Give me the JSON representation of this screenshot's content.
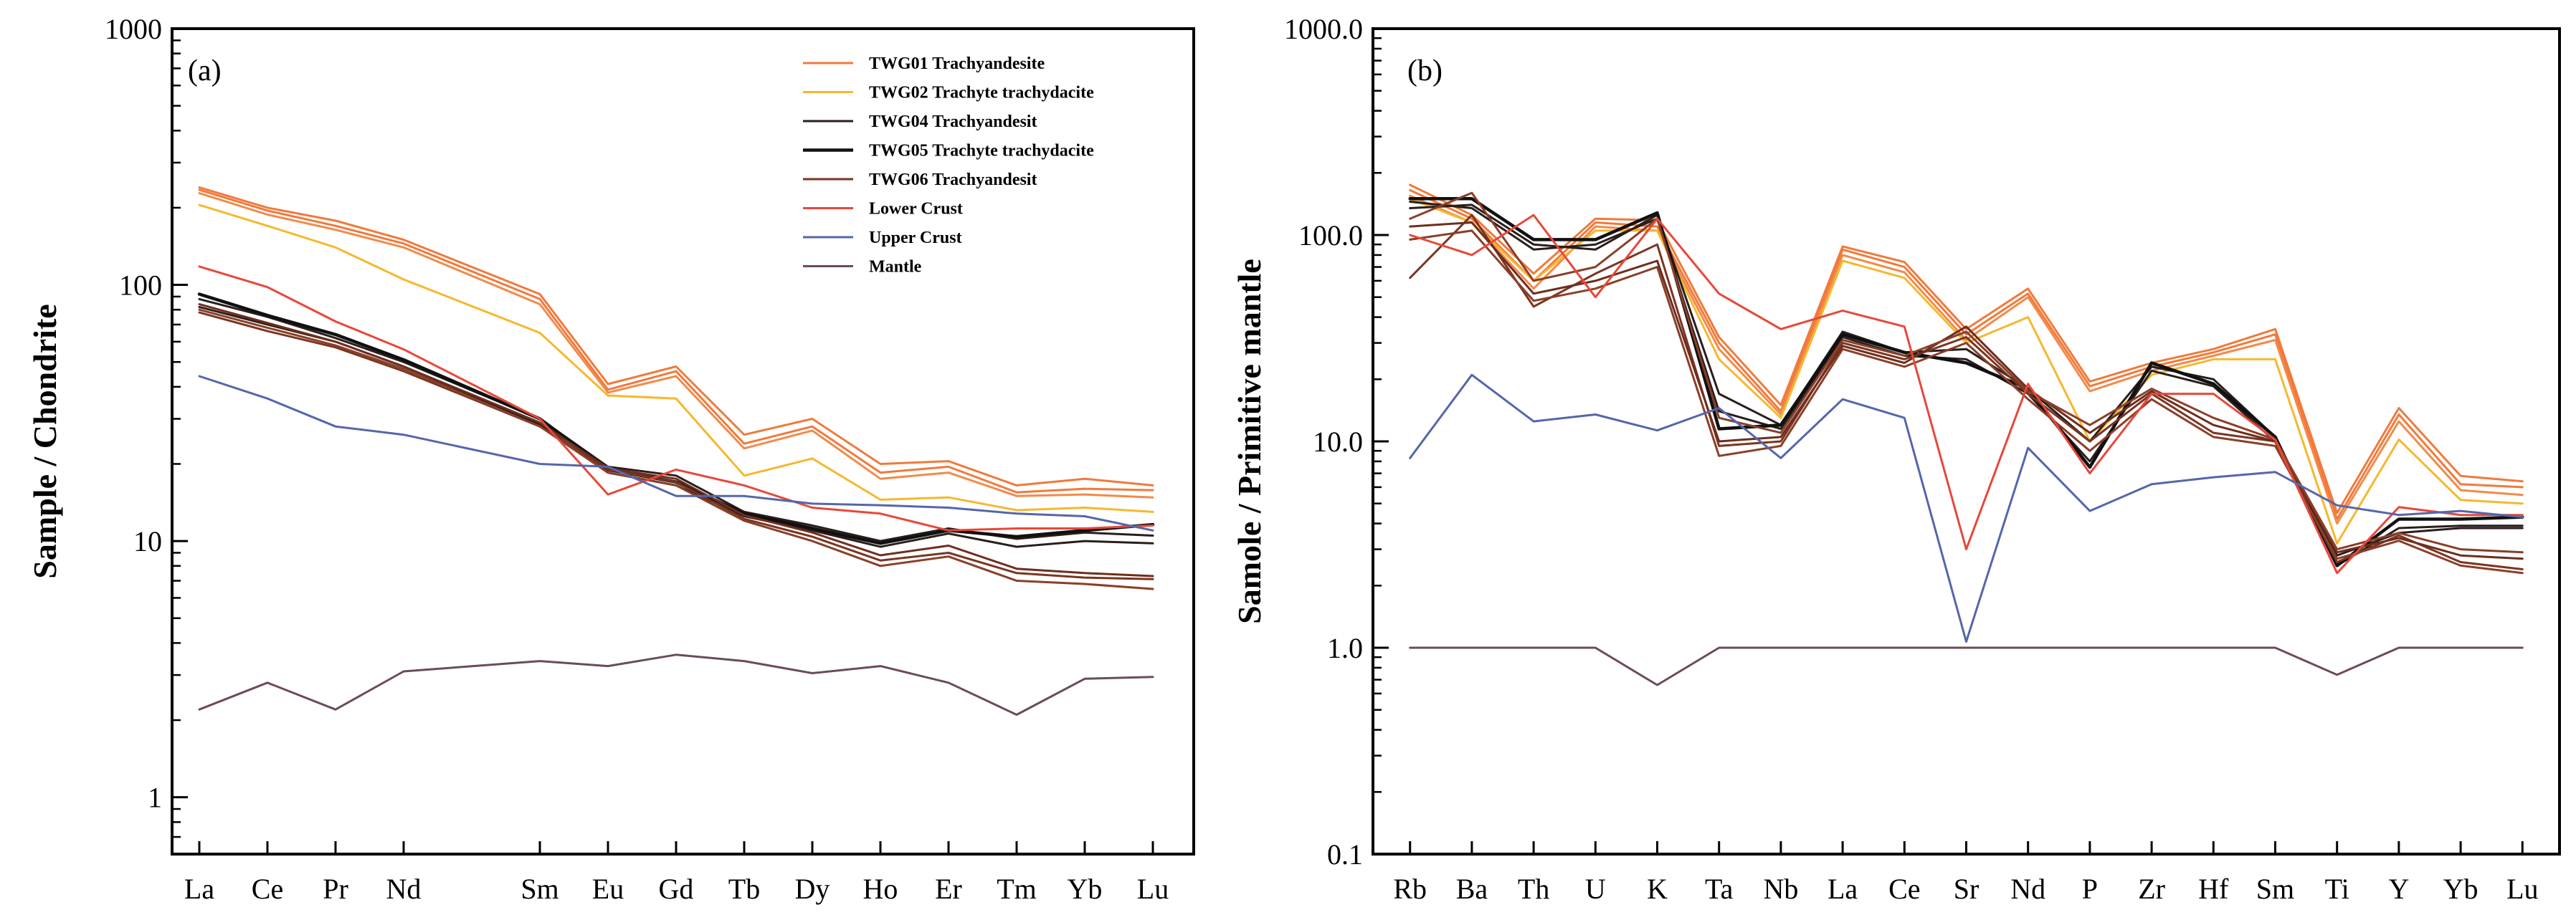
{
  "chart_data": [
    {
      "type": "line",
      "panel_label": "(a)",
      "ylabel": "Sample / Chondrite",
      "xlabel": "",
      "yscale": "log",
      "ylim": [
        0.6,
        1000
      ],
      "y_ticks": [
        1,
        10,
        100,
        1000
      ],
      "y_tick_labels": [
        "1",
        "10",
        "100",
        "1000"
      ],
      "categories": [
        "La",
        "Ce",
        "Pr",
        "Nd",
        "Sm",
        "Eu",
        "Gd",
        "Tb",
        "Dy",
        "Ho",
        "Er",
        "Tm",
        "Yb",
        "Lu"
      ],
      "x_positions": [
        1,
        2,
        3,
        4,
        6,
        7,
        8,
        9,
        10,
        11,
        12,
        13,
        14,
        15
      ],
      "xlim": [
        0.6,
        15.6
      ],
      "legend_position": "top-right",
      "series": [
        {
          "name": "TWG01 Trachyandesite",
          "color": "#f07a3c",
          "width": 3,
          "values": [
            235,
            195,
            170,
            145,
            88,
            39,
            46,
            24,
            28,
            18.5,
            19.5,
            15.5,
            16,
            15.8
          ]
        },
        {
          "name": "",
          "legend": false,
          "color": "#f07a3c",
          "width": 3,
          "values": [
            240,
            200,
            178,
            150,
            92,
            41,
            48,
            26,
            30,
            20,
            20.5,
            16.5,
            17.5,
            16.5
          ]
        },
        {
          "name": "",
          "legend": false,
          "color": "#f28a4a",
          "width": 3,
          "values": [
            228,
            188,
            164,
            140,
            84,
            38,
            44,
            23,
            27,
            17.5,
            18.5,
            15,
            15.2,
            14.8
          ]
        },
        {
          "name": "TWG02 Trachyte trachydacite",
          "color": "#f5b82e",
          "width": 3,
          "values": [
            205,
            170,
            140,
            105,
            65,
            37,
            36,
            18,
            21,
            14.5,
            14.8,
            13.2,
            13.5,
            13
          ]
        },
        {
          "name": "TWG04 Trachyandesit",
          "color": "#2a1e1c",
          "width": 3,
          "values": [
            88,
            75,
            62,
            50,
            30,
            19.5,
            18,
            13,
            11.5,
            10,
            11.2,
            10.2,
            10.8,
            10.5
          ]
        },
        {
          "name": "",
          "legend": false,
          "color": "#2a1e1c",
          "width": 3,
          "values": [
            82,
            70,
            60,
            48,
            28.5,
            18.5,
            16.5,
            12.5,
            11,
            9.5,
            10.7,
            9.5,
            10,
            9.8
          ]
        },
        {
          "name": "TWG05 Trachyte trachydacite",
          "color": "#111111",
          "width": 4.5,
          "values": [
            92,
            76,
            64,
            51,
            30,
            19,
            17,
            12.8,
            11.2,
            9.8,
            11,
            10.4,
            11,
            11.6
          ]
        },
        {
          "name": "TWG06 Trachyandesit",
          "color": "#7a3522",
          "width": 3,
          "values": [
            78,
            66,
            57,
            46,
            28,
            19,
            17,
            12.2,
            10.4,
            8.4,
            9,
            7.5,
            7.2,
            7.1
          ]
        },
        {
          "name": "",
          "legend": false,
          "color": "#8a3f28",
          "width": 3,
          "values": [
            80,
            68,
            58,
            47,
            28,
            18.5,
            16.5,
            12,
            10,
            8,
            8.7,
            7,
            6.8,
            6.5
          ]
        },
        {
          "name": "",
          "legend": false,
          "color": "#6e2e1e",
          "width": 3,
          "values": [
            84,
            71,
            60,
            48,
            29,
            19.2,
            17.5,
            12.6,
            10.8,
            8.8,
            9.6,
            7.8,
            7.5,
            7.3
          ]
        },
        {
          "name": "Lower Crust",
          "color": "#e8473a",
          "width": 3,
          "values": [
            118,
            98,
            72,
            56,
            30,
            15.2,
            19,
            16.5,
            13.5,
            12.8,
            11,
            11.2,
            11.2,
            11.5
          ]
        },
        {
          "name": "Upper Crust",
          "color": "#5566aa",
          "width": 3,
          "values": [
            44,
            36,
            28,
            26,
            20,
            19.5,
            15,
            15,
            14,
            13.8,
            13.5,
            12.8,
            12.5,
            11
          ]
        },
        {
          "name": "Mantle",
          "color": "#6b4d52",
          "width": 3,
          "values": [
            2.2,
            2.8,
            2.2,
            3.1,
            3.4,
            3.25,
            3.6,
            3.4,
            3.05,
            3.25,
            2.8,
            2.1,
            2.9,
            2.95
          ]
        }
      ]
    },
    {
      "type": "line",
      "panel_label": "(b)",
      "ylabel": "Samole / Primitive mantle",
      "xlabel": "",
      "yscale": "log",
      "ylim": [
        0.1,
        1000
      ],
      "y_ticks": [
        0.1,
        1,
        10,
        100,
        1000
      ],
      "y_tick_labels": [
        "0.1",
        "1.0",
        "10.0",
        "100.0",
        "1000.0"
      ],
      "categories": [
        "Rb",
        "Ba",
        "Th",
        "U",
        "K",
        "Ta",
        "Nb",
        "La",
        "Ce",
        "Sr",
        "Nd",
        "P",
        "Zr",
        "Hf",
        "Sm",
        "Ti",
        "Y",
        "Yb",
        "Lu"
      ],
      "x_positions": [
        1,
        2,
        3,
        4,
        5,
        6,
        7,
        8,
        9,
        10,
        11,
        12,
        13,
        14,
        15,
        16,
        17,
        18,
        19
      ],
      "xlim": [
        0.4,
        19.6
      ],
      "series": [
        {
          "name": "TWG01 Trachyandesite",
          "color": "#f07a3c",
          "width": 3,
          "values": [
            165,
            120,
            60,
            115,
            110,
            30,
            14,
            85,
            70,
            33,
            52,
            18.5,
            23,
            27,
            33,
            4.2,
            13.5,
            6.2,
            6
          ]
        },
        {
          "name": "",
          "legend": false,
          "color": "#f07a3c",
          "width": 3,
          "values": [
            175,
            125,
            65,
            120,
            118,
            32,
            15,
            88,
            74,
            35,
            55,
            19.5,
            24,
            28,
            35,
            4.5,
            14.5,
            6.8,
            6.4
          ]
        },
        {
          "name": "",
          "legend": false,
          "color": "#f28a4a",
          "width": 3,
          "values": [
            155,
            115,
            55,
            110,
            105,
            28,
            13.5,
            80,
            66,
            31,
            50,
            17.5,
            22,
            26,
            31,
            4,
            12.5,
            5.8,
            5.5
          ]
        },
        {
          "name": "TWG02 Trachyte trachydacite",
          "color": "#f5b82e",
          "width": 3,
          "values": [
            150,
            115,
            60,
            105,
            105,
            25,
            13,
            75,
            62,
            30,
            40,
            10,
            21,
            25,
            25,
            3.2,
            10.2,
            5.2,
            5
          ]
        },
        {
          "name": "TWG04 Trachyandesit",
          "color": "#2a1e1c",
          "width": 3,
          "values": [
            135,
            140,
            90,
            85,
            125,
            17,
            12,
            34,
            27,
            28,
            18,
            10,
            23,
            20,
            10.5,
            2.5,
            3.8,
            3.9,
            3.9
          ]
        },
        {
          "name": "",
          "legend": false,
          "color": "#2a1e1c",
          "width": 3,
          "values": [
            145,
            135,
            85,
            90,
            120,
            14,
            11.5,
            32,
            26,
            25,
            17,
            8,
            22,
            18.5,
            10,
            2.8,
            3.6,
            3.8,
            3.8
          ]
        },
        {
          "name": "TWG05 Trachyte trachydacite",
          "color": "#111111",
          "width": 4.5,
          "values": [
            150,
            150,
            95,
            95,
            128,
            11.5,
            12,
            33,
            27,
            24,
            18,
            7.5,
            24,
            19,
            10.5,
            2.5,
            4.2,
            4.2,
            4.3
          ]
        },
        {
          "name": "TWG06 Trachyandesit",
          "color": "#7a3522",
          "width": 3,
          "values": [
            62,
            125,
            45,
            65,
            90,
            9.5,
            10,
            30,
            25,
            32,
            17,
            10,
            17,
            11,
            10,
            2.6,
            3.5,
            2.6,
            2.4
          ]
        },
        {
          "name": "",
          "legend": false,
          "color": "#8a3f28",
          "width": 3,
          "values": [
            95,
            105,
            48,
            55,
            70,
            8.5,
            9.5,
            28,
            23,
            30,
            16,
            9,
            16,
            10.5,
            9.5,
            2.7,
            3.3,
            2.5,
            2.3
          ]
        },
        {
          "name": "",
          "legend": false,
          "color": "#6e2e1e",
          "width": 3,
          "values": [
            110,
            115,
            52,
            60,
            75,
            10,
            10.5,
            29,
            24,
            36,
            18,
            11,
            17.5,
            12,
            10,
            2.9,
            3.4,
            2.8,
            2.7
          ]
        },
        {
          "name": "",
          "legend": false,
          "color": "#8a3f28",
          "width": 3,
          "values": [
            120,
            160,
            60,
            70,
            120,
            13,
            11,
            31,
            26,
            34,
            17.5,
            12,
            18,
            13,
            10.2,
            3,
            3.6,
            3,
            2.9
          ]
        },
        {
          "name": "Lower Crust",
          "color": "#e8473a",
          "width": 3,
          "values": [
            100,
            80,
            125,
            50,
            120,
            52,
            35,
            43,
            36,
            3,
            19,
            7,
            17,
            17,
            10.2,
            2.3,
            4.8,
            4.4,
            4.4
          ]
        },
        {
          "name": "Upper Crust",
          "color": "#5566aa",
          "width": 3,
          "values": [
            8.3,
            21,
            12.5,
            13.5,
            11.3,
            14.5,
            8.3,
            16,
            13,
            1.07,
            9.3,
            4.6,
            6.2,
            6.7,
            7.1,
            4.9,
            4.4,
            4.6,
            4.3
          ]
        },
        {
          "name": "Mantle",
          "color": "#6b4d52",
          "width": 3,
          "values": [
            1,
            1,
            1,
            1,
            0.66,
            1,
            1,
            1,
            1,
            1,
            1,
            1,
            1,
            1,
            1,
            0.74,
            1,
            1,
            1
          ]
        }
      ]
    }
  ]
}
